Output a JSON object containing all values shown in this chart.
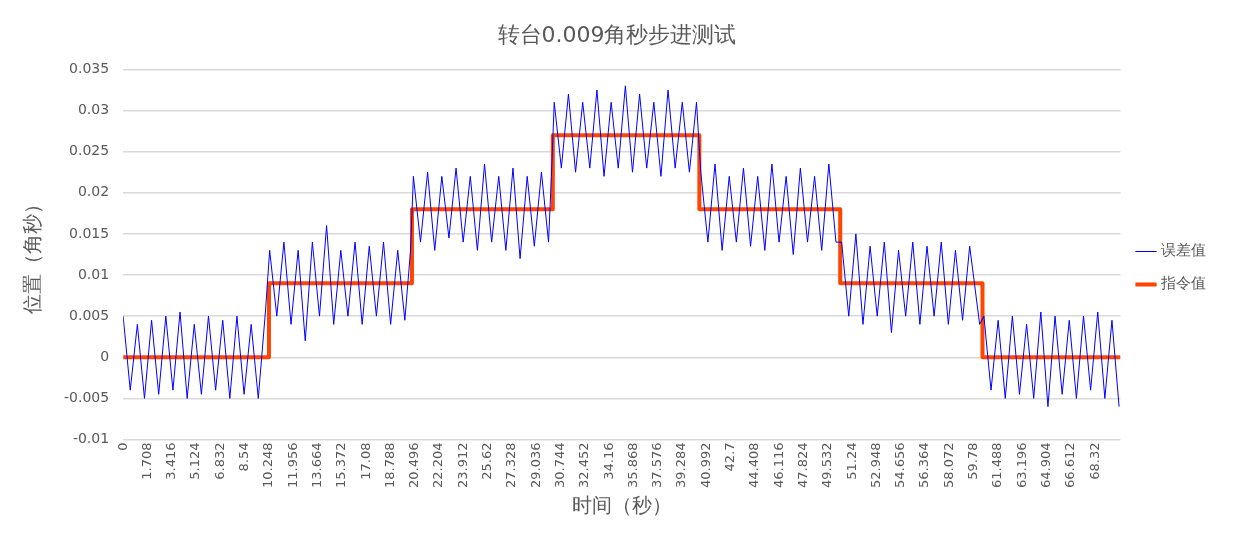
{
  "chart_data": {
    "type": "line",
    "title": "转台0.009角秒步进测试",
    "xlabel": "时间（秒）",
    "ylabel": "位置（角秒）",
    "xlim": [
      0,
      70.1
    ],
    "xticks": [
      0,
      1.708,
      3.416,
      5.124,
      6.832,
      8.54,
      10.248,
      11.956,
      13.664,
      15.372,
      17.08,
      18.788,
      20.496,
      22.204,
      23.912,
      25.62,
      27.328,
      29.036,
      30.744,
      32.452,
      34.16,
      35.868,
      37.576,
      39.284,
      40.992,
      42.7,
      44.408,
      46.116,
      47.824,
      49.532,
      51.24,
      52.948,
      54.656,
      56.364,
      58.072,
      59.78,
      61.488,
      63.196,
      64.904,
      66.612,
      68.32
    ],
    "ylim": [
      -0.01,
      0.035
    ],
    "yticks": [
      -0.01,
      -0.005,
      0,
      0.005,
      0.01,
      0.015,
      0.02,
      0.025,
      0.03,
      0.035
    ],
    "grid": "y",
    "legend": "right",
    "series": [
      {
        "name": "误差值",
        "color": "#0000ff",
        "x": [
          0,
          0.5,
          1,
          1.5,
          2,
          2.5,
          3,
          3.5,
          4,
          4.5,
          5,
          5.5,
          6,
          6.5,
          7,
          7.5,
          8,
          8.5,
          9,
          9.5,
          10,
          10.3,
          10.8,
          11.3,
          11.8,
          12.3,
          12.8,
          13.3,
          13.8,
          14.3,
          14.8,
          15.3,
          15.8,
          16.3,
          16.8,
          17.3,
          17.8,
          18.3,
          18.8,
          19.3,
          19.8,
          20.2,
          20.4,
          20.9,
          21.4,
          21.9,
          22.4,
          22.9,
          23.4,
          23.9,
          24.4,
          24.9,
          25.4,
          25.9,
          26.4,
          26.9,
          27.4,
          27.9,
          28.4,
          28.9,
          29.4,
          29.9,
          30.1,
          30.3,
          30.8,
          31.3,
          31.8,
          32.3,
          32.8,
          33.3,
          33.8,
          34.3,
          34.8,
          35.3,
          35.8,
          36.3,
          36.8,
          37.3,
          37.8,
          38.3,
          38.8,
          39.3,
          39.8,
          40.3,
          40.6,
          41.1,
          41.6,
          42.1,
          42.6,
          43.1,
          43.6,
          44.1,
          44.6,
          45.1,
          45.6,
          46.1,
          46.6,
          47.1,
          47.6,
          48.1,
          48.6,
          49.1,
          49.6,
          50.1,
          50.5,
          51,
          51.5,
          52,
          52.5,
          53,
          53.5,
          54,
          54.5,
          55,
          55.5,
          56,
          56.5,
          57,
          57.5,
          58,
          58.5,
          59,
          59.5,
          60.2,
          60.5,
          61,
          61.5,
          62,
          62.5,
          63,
          63.5,
          64,
          64.5,
          65,
          65.5,
          66,
          66.5,
          67,
          67.5,
          68,
          68.5,
          69,
          69.5,
          70
        ],
        "values": [
          0.005,
          -0.004,
          0.004,
          -0.005,
          0.0045,
          -0.0045,
          0.005,
          -0.004,
          0.0055,
          -0.005,
          0.004,
          -0.0045,
          0.005,
          -0.004,
          0.0045,
          -0.005,
          0.005,
          -0.0045,
          0.004,
          -0.005,
          0.0055,
          0.013,
          0.005,
          0.014,
          0.004,
          0.013,
          0.002,
          0.014,
          0.005,
          0.016,
          0.004,
          0.013,
          0.005,
          0.014,
          0.004,
          0.0135,
          0.005,
          0.014,
          0.004,
          0.013,
          0.0045,
          0.013,
          0.022,
          0.014,
          0.0225,
          0.013,
          0.022,
          0.0145,
          0.023,
          0.014,
          0.022,
          0.013,
          0.0235,
          0.014,
          0.022,
          0.013,
          0.023,
          0.012,
          0.022,
          0.0135,
          0.0225,
          0.014,
          0.022,
          0.031,
          0.023,
          0.032,
          0.0225,
          0.031,
          0.023,
          0.0325,
          0.022,
          0.031,
          0.023,
          0.033,
          0.0225,
          0.032,
          0.023,
          0.031,
          0.022,
          0.0325,
          0.023,
          0.031,
          0.0225,
          0.031,
          0.0225,
          0.014,
          0.0235,
          0.013,
          0.022,
          0.014,
          0.023,
          0.0135,
          0.022,
          0.013,
          0.0235,
          0.014,
          0.022,
          0.0125,
          0.023,
          0.014,
          0.022,
          0.013,
          0.0235,
          0.014,
          0.014,
          0.005,
          0.015,
          0.004,
          0.0135,
          0.005,
          0.014,
          0.003,
          0.013,
          0.005,
          0.014,
          0.004,
          0.0135,
          0.005,
          0.014,
          0.004,
          0.013,
          0.0045,
          0.0135,
          0.004,
          0.005,
          -0.004,
          0.0045,
          -0.005,
          0.005,
          -0.0045,
          0.004,
          -0.005,
          0.0055,
          -0.006,
          0.005,
          -0.0045,
          0.0045,
          -0.005,
          0.005,
          -0.004,
          0.0055,
          -0.005,
          0.0045,
          -0.006
        ]
      },
      {
        "name": "指令值",
        "type": "step",
        "color": "#ff4500",
        "x": [
          0,
          10.25,
          20.3,
          30.2,
          40.5,
          50.4,
          60.4,
          70.1
        ],
        "values": [
          0,
          0.009,
          0.018,
          0.027,
          0.018,
          0.009,
          0,
          0
        ]
      }
    ]
  }
}
